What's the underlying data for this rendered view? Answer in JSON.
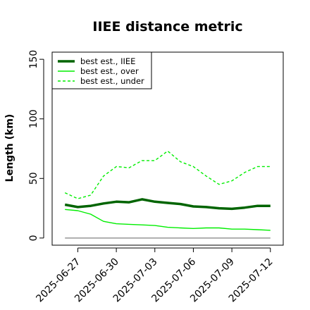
{
  "chart_data": {
    "type": "line",
    "title": "IIEE distance metric",
    "xlabel": "",
    "ylabel": "Length (km)",
    "ylim": [
      0,
      150
    ],
    "yticks": [
      0,
      50,
      100,
      150
    ],
    "xlim": [
      "2025-06-25",
      "2025-07-13"
    ],
    "xtick_labels": [
      "2025-06-27",
      "2025-06-30",
      "2025-07-03",
      "2025-07-06",
      "2025-07-09",
      "2025-07-12"
    ],
    "x": [
      "2025-06-26",
      "2025-06-27",
      "2025-06-28",
      "2025-06-29",
      "2025-06-30",
      "2025-07-01",
      "2025-07-02",
      "2025-07-03",
      "2025-07-04",
      "2025-07-05",
      "2025-07-06",
      "2025-07-07",
      "2025-07-08",
      "2025-07-09",
      "2025-07-10",
      "2025-07-11",
      "2025-07-12"
    ],
    "series": [
      {
        "name": "best est., IIEE",
        "color": "#006400",
        "style": "solid",
        "values": [
          28,
          26,
          27,
          29,
          30.5,
          30,
          32.5,
          30.5,
          29.5,
          28.5,
          26.5,
          26,
          25,
          24.5,
          25.5,
          27,
          27
        ]
      },
      {
        "name": "best est., over",
        "color": "#00ee00",
        "style": "solid",
        "values": [
          24,
          23,
          20,
          14,
          12,
          11.5,
          11,
          10.5,
          9,
          8.5,
          8,
          8.5,
          8.5,
          7.5,
          7.5,
          7,
          6.5
        ]
      },
      {
        "name": "best est., under",
        "color": "#00ee00",
        "style": "dashed",
        "values": [
          38,
          33,
          36,
          52,
          60,
          59,
          65,
          65,
          73,
          64,
          60,
          52,
          45,
          48,
          55,
          60,
          60
        ]
      },
      {
        "name": "",
        "color": "#808080",
        "style": "solid",
        "values": [
          0,
          0,
          0,
          0,
          0,
          0,
          0,
          0,
          0,
          0,
          0,
          0,
          0,
          0,
          0,
          0,
          0
        ]
      }
    ],
    "legend_position": "top-left",
    "grid": false
  }
}
